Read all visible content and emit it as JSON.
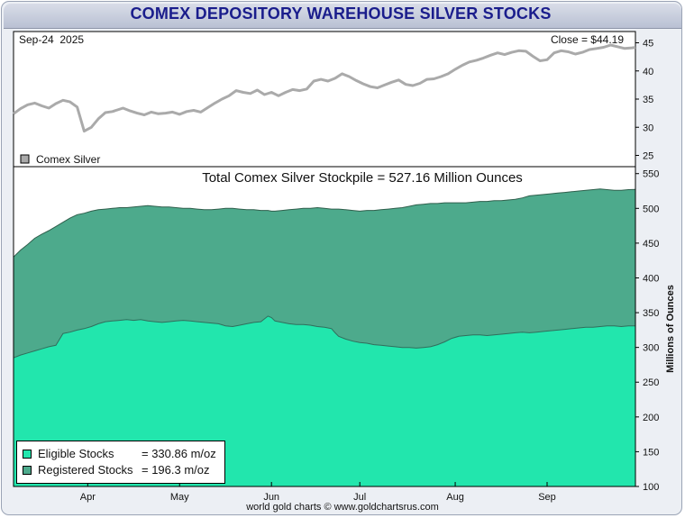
{
  "header": {
    "title": "COMEX DEPOSITORY WAREHOUSE SILVER STOCKS"
  },
  "footer": {
    "credit": "world gold charts © www.goldchartsrus.com"
  },
  "colors": {
    "eligible": "#22e6ad",
    "registered": "#4daa8c",
    "price_line": "#aaaaaa"
  },
  "chart_data": [
    {
      "type": "line",
      "date_label": "Sep-24  2025",
      "close_label": "Close = $44.19",
      "legend": "Comex Silver",
      "ylim": [
        23,
        47
      ],
      "yticks": [
        25,
        30,
        35,
        40,
        45
      ],
      "x": [
        0,
        2,
        4,
        6,
        8,
        10,
        12,
        14,
        16,
        18,
        20,
        22,
        24,
        26,
        28,
        29,
        31,
        33,
        35,
        37,
        39,
        41,
        43,
        45,
        47,
        49,
        51,
        53,
        55,
        57,
        59,
        61,
        63,
        65,
        67,
        69,
        71,
        73,
        75,
        77,
        79,
        81,
        83,
        85,
        87,
        89,
        91,
        93,
        95,
        97,
        99,
        101,
        103,
        105,
        107,
        109,
        111,
        113,
        115,
        117,
        119,
        121,
        123,
        125,
        127,
        129,
        131,
        133,
        135,
        137,
        139,
        141,
        143,
        145,
        147,
        149,
        151,
        153,
        155,
        157,
        159,
        161,
        163,
        165,
        167,
        169,
        171,
        173,
        175,
        176
      ],
      "values": [
        32.4,
        33.3,
        34.0,
        34.3,
        33.8,
        33.4,
        34.2,
        34.8,
        34.5,
        33.6,
        29.3,
        30.0,
        31.5,
        32.6,
        32.8,
        33.0,
        33.4,
        32.9,
        32.5,
        32.2,
        32.7,
        32.4,
        32.5,
        32.7,
        32.3,
        32.8,
        33.0,
        32.7,
        33.5,
        34.3,
        35.0,
        35.6,
        36.5,
        36.2,
        36.0,
        36.6,
        35.8,
        36.2,
        35.6,
        36.2,
        36.7,
        36.5,
        36.8,
        38.2,
        38.5,
        38.2,
        38.7,
        39.5,
        39.0,
        38.3,
        37.7,
        37.2,
        37.0,
        37.5,
        38.0,
        38.4,
        37.6,
        37.4,
        37.8,
        38.5,
        38.6,
        39.0,
        39.5,
        40.3,
        41.0,
        41.6,
        41.9,
        42.3,
        42.8,
        43.2,
        42.9,
        43.3,
        43.6,
        43.5,
        42.6,
        41.8,
        42.0,
        43.2,
        43.6,
        43.4,
        43.0,
        43.3,
        43.8,
        44.0,
        44.2,
        44.6,
        44.3,
        44.0,
        44.1,
        44.19
      ]
    },
    {
      "type": "area",
      "title": "Total Comex Silver Stockpile = 527.16 Million Ounces",
      "ylabel": "Millions of Ounces",
      "ylim": [
        100,
        560
      ],
      "yticks": [
        100,
        150,
        200,
        250,
        300,
        350,
        400,
        450,
        500,
        550
      ],
      "xlabels": [
        "Apr",
        "May",
        "Jun",
        "Jul",
        "Aug",
        "Sep"
      ],
      "xlabel_pos": [
        21,
        47,
        73,
        98,
        125,
        151
      ],
      "x_max": 176,
      "x": [
        0,
        2,
        4,
        6,
        8,
        10,
        12,
        14,
        16,
        18,
        20,
        22,
        24,
        26,
        28,
        30,
        32,
        34,
        36,
        38,
        40,
        42,
        44,
        46,
        48,
        50,
        52,
        54,
        56,
        58,
        60,
        62,
        64,
        66,
        68,
        70,
        72,
        73,
        74,
        76,
        78,
        80,
        82,
        84,
        86,
        88,
        90,
        91,
        92,
        94,
        96,
        98,
        100,
        102,
        104,
        106,
        108,
        110,
        112,
        114,
        116,
        118,
        120,
        122,
        124,
        126,
        128,
        130,
        132,
        134,
        136,
        138,
        140,
        142,
        144,
        146,
        148,
        150,
        152,
        154,
        156,
        158,
        160,
        162,
        164,
        166,
        168,
        170,
        172,
        174,
        176
      ],
      "series": [
        {
          "name": "Eligible Stocks",
          "legend_value": "= 330.86 m/oz",
          "values": [
            285,
            289,
            292,
            295,
            298,
            301,
            303,
            320,
            322,
            325,
            327,
            330,
            334,
            337,
            338,
            339,
            340,
            339,
            340,
            338,
            337,
            336,
            337,
            338,
            339,
            338,
            337,
            336,
            335,
            334,
            331,
            330,
            332,
            334,
            336,
            337,
            345,
            343,
            338,
            336,
            334,
            333,
            333,
            332,
            330,
            329,
            327,
            321,
            316,
            312,
            309,
            307,
            306,
            304,
            303,
            302,
            301,
            300,
            300,
            299,
            300,
            301,
            304,
            308,
            313,
            316,
            317,
            318,
            318,
            317,
            318,
            319,
            320,
            321,
            322,
            321,
            322,
            323,
            324,
            325,
            326,
            327,
            328,
            329,
            329,
            330,
            331,
            331,
            330,
            331,
            330.86
          ]
        },
        {
          "name": "Registered Stocks",
          "legend_value": "= 196.3 m/oz",
          "total_values": [
            430,
            440,
            448,
            457,
            463,
            468,
            474,
            480,
            486,
            491,
            493,
            496,
            498,
            499,
            500,
            501,
            501,
            502,
            503,
            504,
            503,
            502,
            502,
            501,
            500,
            500,
            499,
            498,
            498,
            499,
            500,
            500,
            499,
            498,
            498,
            497,
            497,
            496,
            496,
            497,
            498,
            499,
            500,
            500,
            501,
            500,
            499,
            499,
            499,
            498,
            497,
            496,
            497,
            497,
            498,
            499,
            500,
            501,
            503,
            505,
            506,
            507,
            507,
            508,
            508,
            508,
            508,
            509,
            510,
            510,
            511,
            511,
            512,
            513,
            515,
            518,
            519,
            520,
            521,
            522,
            523,
            524,
            525,
            526,
            527,
            528,
            527,
            526,
            526,
            527,
            527.16
          ]
        }
      ]
    }
  ]
}
